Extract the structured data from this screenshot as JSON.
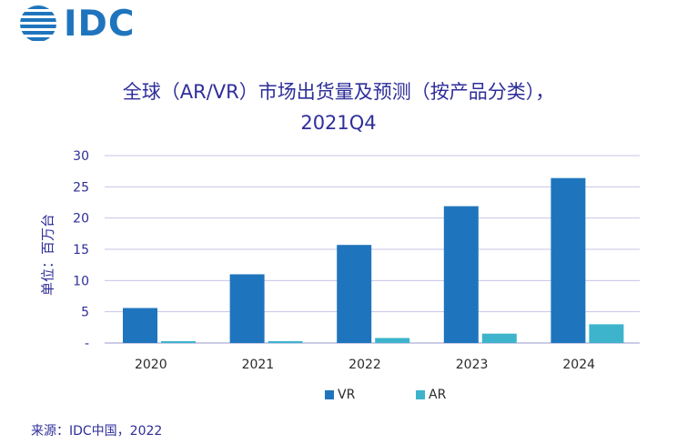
{
  "logo": {
    "text": "IDC",
    "color": "#1f75bd"
  },
  "chart_data": {
    "type": "bar",
    "title_line1": "全球（AR/VR）市场出货量及预测（按产品分类），",
    "title_line2": "2021Q4",
    "ylabel": "单位：百万台",
    "categories": [
      "2020",
      "2021",
      "2022",
      "2023",
      "2024"
    ],
    "series": [
      {
        "name": "VR",
        "values": [
          5.6,
          11.0,
          15.7,
          21.9,
          26.4
        ],
        "color": "#1f75bd"
      },
      {
        "name": "AR",
        "values": [
          0.3,
          0.3,
          0.8,
          1.5,
          3.0
        ],
        "color": "#3db4cc"
      }
    ],
    "ylim": [
      0,
      30
    ],
    "yticks": [
      {
        "value": 0,
        "label": "-"
      },
      {
        "value": 5,
        "label": "5"
      },
      {
        "value": 10,
        "label": "10"
      },
      {
        "value": 15,
        "label": "15"
      },
      {
        "value": 20,
        "label": "20"
      },
      {
        "value": 25,
        "label": "25"
      },
      {
        "value": 30,
        "label": "30"
      }
    ],
    "grid": true,
    "legend_position": "bottom"
  },
  "source": "来源：IDC中国，2022"
}
